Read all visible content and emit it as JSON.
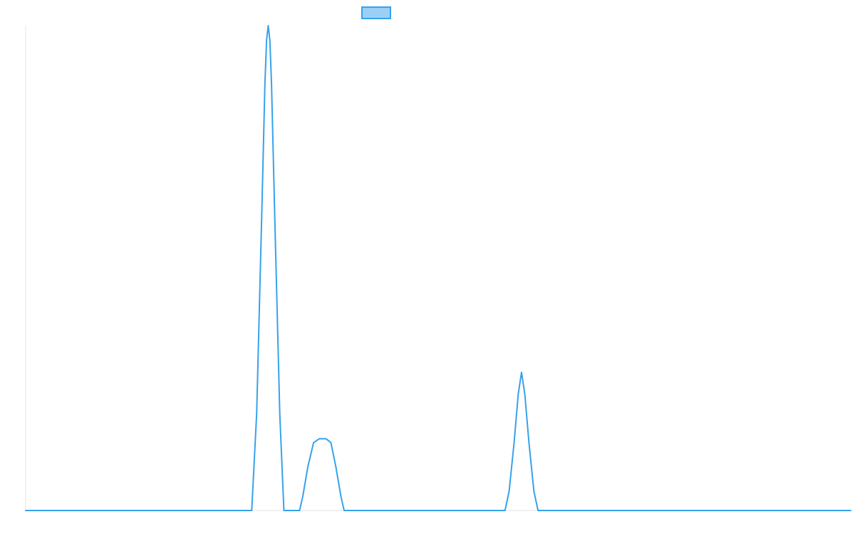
{
  "chart_data": {
    "type": "line",
    "title": "",
    "xlabel": "",
    "ylabel": "",
    "grid": false,
    "legend": {
      "position": "top-center",
      "entries": [
        {
          "name": "",
          "color": "#36a2eb",
          "fill": "#9ad0f5"
        }
      ]
    },
    "xlim": [
      0,
      100
    ],
    "ylim": [
      0,
      100
    ],
    "series": [
      {
        "name": "",
        "color": "#36a2eb",
        "points": [
          [
            0,
            0
          ],
          [
            27.4,
            0
          ],
          [
            28.0,
            20
          ],
          [
            28.6,
            60
          ],
          [
            29.0,
            88
          ],
          [
            29.2,
            97
          ],
          [
            29.4,
            100
          ],
          [
            29.6,
            97
          ],
          [
            29.8,
            88
          ],
          [
            30.2,
            60
          ],
          [
            30.8,
            20
          ],
          [
            31.3,
            0
          ],
          [
            33.2,
            0
          ],
          [
            33.6,
            3
          ],
          [
            34.2,
            9
          ],
          [
            34.9,
            14
          ],
          [
            35.6,
            14.8
          ],
          [
            36.4,
            14.8
          ],
          [
            37.0,
            14.0
          ],
          [
            37.6,
            9
          ],
          [
            38.2,
            3
          ],
          [
            38.6,
            0
          ],
          [
            58.1,
            0
          ],
          [
            58.6,
            4
          ],
          [
            59.2,
            14
          ],
          [
            59.7,
            24
          ],
          [
            60.1,
            28.5
          ],
          [
            60.5,
            24
          ],
          [
            61.0,
            14
          ],
          [
            61.6,
            4
          ],
          [
            62.1,
            0
          ],
          [
            100,
            0
          ]
        ]
      }
    ]
  }
}
